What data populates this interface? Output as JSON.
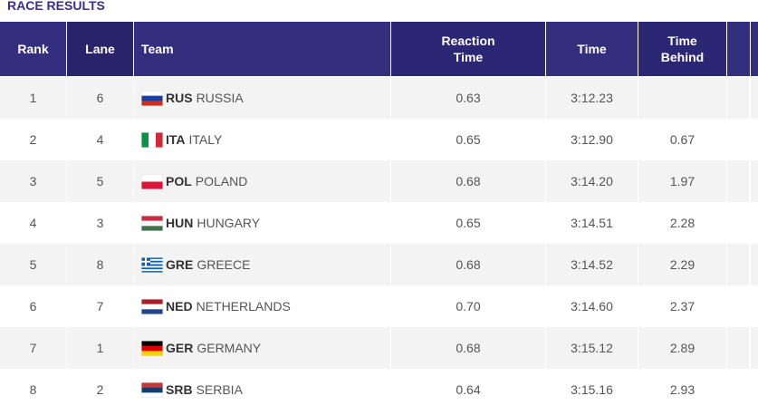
{
  "title": "RACE RESULTS",
  "table": {
    "columns": [
      "Rank",
      "Lane",
      "Team",
      "Reaction Time",
      "Time",
      "Time Behind"
    ],
    "rows": [
      [
        "1",
        "6",
        "RUS",
        "RUSSIA",
        "0.63",
        "3:12.23",
        null
      ],
      [
        "2",
        "4",
        "ITA",
        "ITALY",
        "0.65",
        "3:12.90",
        "0.67"
      ],
      [
        "3",
        "5",
        "POL",
        "POLAND",
        "0.68",
        "3:14.20",
        "1.97"
      ],
      [
        "4",
        "3",
        "HUN",
        "HUNGARY",
        "0.65",
        "3:14.51",
        "2.28"
      ],
      [
        "5",
        "8",
        "GRE",
        "GREECE",
        "0.68",
        "3:14.52",
        "2.29"
      ],
      [
        "6",
        "7",
        "NED",
        "NETHERLANDS",
        "0.70",
        "3:14.60",
        "2.37"
      ],
      [
        "7",
        "1",
        "GER",
        "GERMANY",
        "0.68",
        "3:15.12",
        "2.89"
      ],
      [
        "8",
        "2",
        "SRB",
        "SERBIA",
        "0.64",
        "3:15.16",
        "2.93"
      ]
    ]
  }
}
